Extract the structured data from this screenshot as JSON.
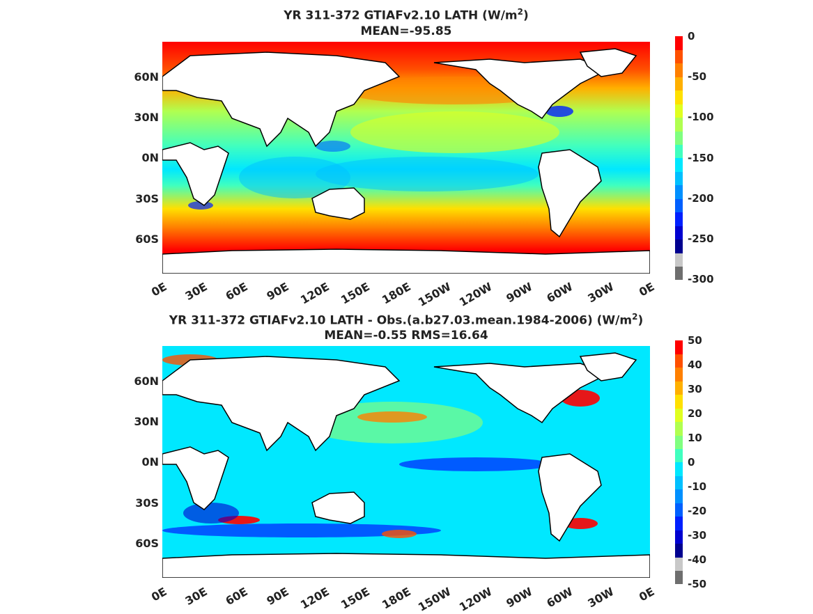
{
  "panels": [
    {
      "id": "top",
      "title_line1": "YR 311-372 GTIAFv2.10  LATH (W/m",
      "title_sup": "2",
      "title_close": ")",
      "title_line2": "MEAN=-95.85",
      "lat_labels": [
        "60N",
        "30N",
        "0N",
        "30S",
        "60S"
      ],
      "lon_labels": [
        "0E",
        "30E",
        "60E",
        "90E",
        "120E",
        "150E",
        "180E",
        "150W",
        "120W",
        "90W",
        "60W",
        "30W",
        "0E"
      ],
      "colorbar_labels": [
        "0",
        "-50",
        "-100",
        "-150",
        "-200",
        "-250",
        "-300"
      ],
      "colorbar_colors": [
        "#6e6e6e",
        "#c8c8c8",
        "#00008f",
        "#0000d0",
        "#0020ff",
        "#0060ff",
        "#0090ff",
        "#00c0ff",
        "#00e8ff",
        "#40ffbf",
        "#80ff80",
        "#b0ff50",
        "#e0ff20",
        "#ffe000",
        "#ffb000",
        "#ff8000",
        "#ff5000",
        "#ff0000"
      ]
    },
    {
      "id": "bottom",
      "title_line1": "YR 311-372 GTIAFv2.10 LATH - Obs.(a.b27.03.mean.1984-2006) (W/m",
      "title_sup": "2",
      "title_close": ")",
      "title_line2": "MEAN=-0.55 RMS=16.64",
      "lat_labels": [
        "60N",
        "30N",
        "0N",
        "30S",
        "60S"
      ],
      "lon_labels": [
        "0E",
        "30E",
        "60E",
        "90E",
        "120E",
        "150E",
        "180E",
        "150W",
        "120W",
        "90W",
        "60W",
        "30W",
        "0E"
      ],
      "colorbar_labels": [
        "50",
        "40",
        "30",
        "20",
        "10",
        "0",
        "-10",
        "-20",
        "-30",
        "-40",
        "-50"
      ],
      "colorbar_colors": [
        "#6e6e6e",
        "#c8c8c8",
        "#00008f",
        "#0000d0",
        "#0020ff",
        "#0060ff",
        "#0090ff",
        "#00c0ff",
        "#00e8ff",
        "#40ffbf",
        "#80ff80",
        "#b0ff50",
        "#e0ff20",
        "#ffe000",
        "#ffb000",
        "#ff8000",
        "#ff5000",
        "#ff0000"
      ]
    }
  ]
}
